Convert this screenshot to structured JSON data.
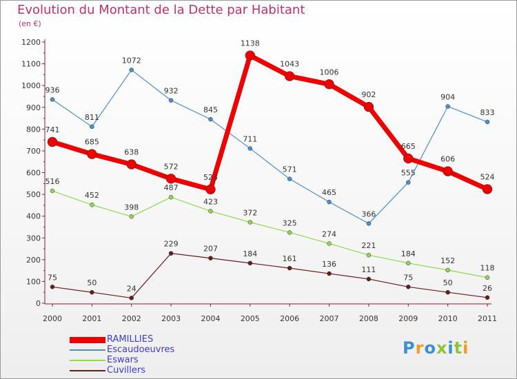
{
  "title": "Evolution du Montant de la Dette par Habitant",
  "subtitle": "(en €)",
  "logo_text": "Proxiti",
  "chart_data": {
    "type": "line",
    "title": "Evolution du Montant de la Dette par Habitant",
    "subtitle": "(en €)",
    "xlabel": "",
    "ylabel": "",
    "categories": [
      "2000",
      "2001",
      "2002",
      "2003",
      "2004",
      "2005",
      "2006",
      "2007",
      "2008",
      "2009",
      "2010",
      "2011"
    ],
    "yticks": [
      "0",
      "100",
      "200",
      "300",
      "400",
      "500",
      "600",
      "700",
      "800",
      "900",
      "1000",
      "1100",
      "1200"
    ],
    "ylim": [
      0,
      1200
    ],
    "grid": false,
    "legend_position": "bottom-left",
    "series": [
      {
        "name": "RAMILLIES",
        "color": "#ee0000",
        "values": [
          741,
          685,
          638,
          572,
          523,
          1138,
          1043,
          1006,
          902,
          665,
          606,
          524
        ],
        "labels": [
          "741",
          "685",
          "638",
          "572",
          "523",
          "1138",
          "1043",
          "1006",
          "902",
          "665",
          "606",
          "524"
        ]
      },
      {
        "name": "Escaudoeuvres",
        "color": "#4a8fd0",
        "values": [
          936,
          811,
          1072,
          932,
          845,
          711,
          571,
          465,
          366,
          555,
          904,
          833
        ],
        "labels": [
          "936",
          "811",
          "1072",
          "932",
          "845",
          "711",
          "571",
          "465",
          "366",
          "555",
          "904",
          "833"
        ]
      },
      {
        "name": "Eswars",
        "color": "#8fd850",
        "values": [
          516,
          452,
          398,
          487,
          423,
          372,
          325,
          274,
          221,
          184,
          152,
          118
        ],
        "labels": [
          "516",
          "452",
          "398",
          "487",
          "423",
          "372",
          "325",
          "274",
          "221",
          "184",
          "152",
          "118"
        ]
      },
      {
        "name": "Cuvillers",
        "color": "#6a1a1a",
        "values": [
          75,
          50,
          24,
          229,
          207,
          184,
          161,
          136,
          111,
          75,
          50,
          26
        ],
        "labels": [
          "75",
          "50",
          "24",
          "229",
          "207",
          "184",
          "161",
          "136",
          "111",
          "75",
          "50",
          "26"
        ]
      }
    ]
  }
}
